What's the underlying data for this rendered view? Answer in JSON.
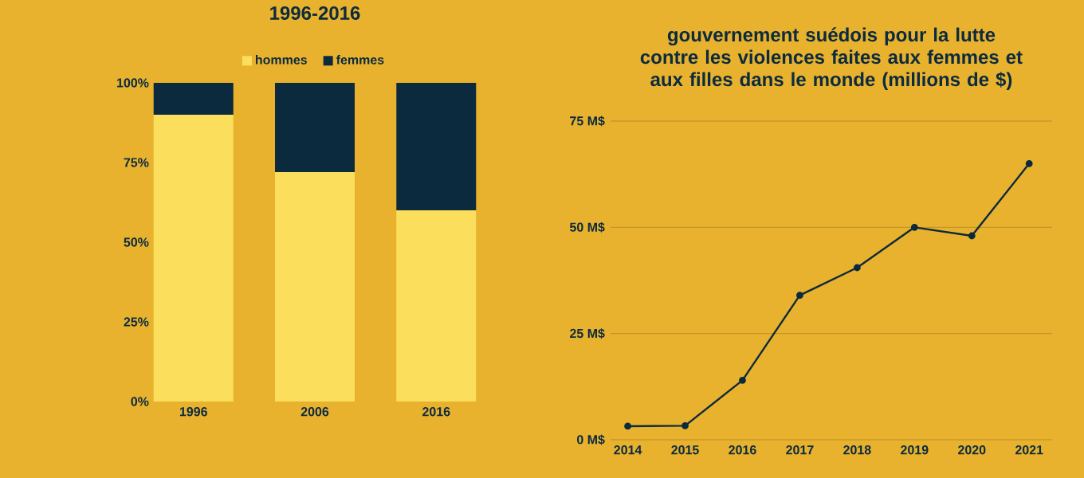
{
  "chart_data": [
    {
      "type": "bar",
      "title": "1996-2016",
      "categories": [
        "1996",
        "2006",
        "2016"
      ],
      "stacked": true,
      "legend": "top",
      "series": [
        {
          "name": "hommes",
          "color": "#fbde5c",
          "values": [
            90,
            72,
            60
          ]
        },
        {
          "name": "femmes",
          "color": "#0b2a3d",
          "values": [
            10,
            28,
            40
          ]
        }
      ],
      "ylim": [
        0,
        100
      ],
      "yticks": [
        {
          "value": 0,
          "label": "0%"
        },
        {
          "value": 25,
          "label": "25%"
        },
        {
          "value": 50,
          "label": "50%"
        },
        {
          "value": 75,
          "label": "75%"
        },
        {
          "value": 100,
          "label": "100%"
        }
      ]
    },
    {
      "type": "line",
      "title": "gouvernement suédois pour la lutte contre les violences faites aux femmes et aux filles dans le monde (millions de $)",
      "x": [
        2014,
        2015,
        2016,
        2017,
        2018,
        2019,
        2020,
        2021
      ],
      "values": [
        3.2,
        3.3,
        14,
        34,
        40.5,
        50,
        48,
        65
      ],
      "color": "#0b2a3d",
      "marker": "circle",
      "grid": "y",
      "xlim": [
        2013.7,
        2021.4
      ],
      "xticks": [
        2014,
        2015,
        2016,
        2017,
        2018,
        2019,
        2020,
        2021
      ],
      "ylim": [
        0,
        75
      ],
      "yticks": [
        {
          "value": 0,
          "label": "0 M$"
        },
        {
          "value": 25,
          "label": "25 M$"
        },
        {
          "value": 50,
          "label": "50 M$"
        },
        {
          "value": 75,
          "label": "75 M$"
        }
      ]
    }
  ]
}
